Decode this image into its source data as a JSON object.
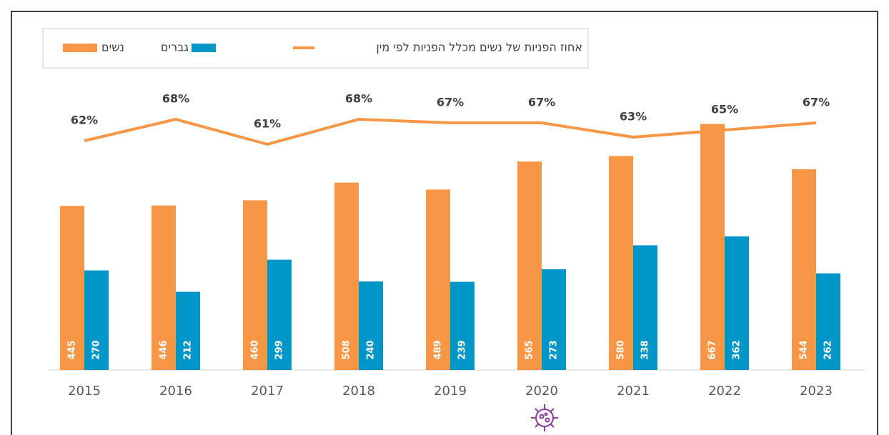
{
  "chart_data": {
    "type": "bar",
    "categories": [
      "2015",
      "2016",
      "2017",
      "2018",
      "2019",
      "2020",
      "2021",
      "2022",
      "2023"
    ],
    "series": [
      {
        "name": "נשים",
        "color": "#f79646",
        "values": [
          445,
          446,
          460,
          508,
          489,
          565,
          580,
          667,
          544
        ]
      },
      {
        "name": "גברים",
        "color": "#0096c8",
        "values": [
          270,
          212,
          299,
          240,
          239,
          273,
          338,
          362,
          262
        ]
      },
      {
        "name": "אחוז הפניות של נשים מכלל הפניות לפי מין",
        "type": "line",
        "color": "#f79646",
        "values": [
          62,
          68,
          61,
          68,
          67,
          67,
          63,
          65,
          67
        ],
        "value_labels": [
          "62%",
          "68%",
          "61%",
          "68%",
          "67%",
          "67%",
          "63%",
          "65%",
          "67%"
        ]
      }
    ]
  }
}
